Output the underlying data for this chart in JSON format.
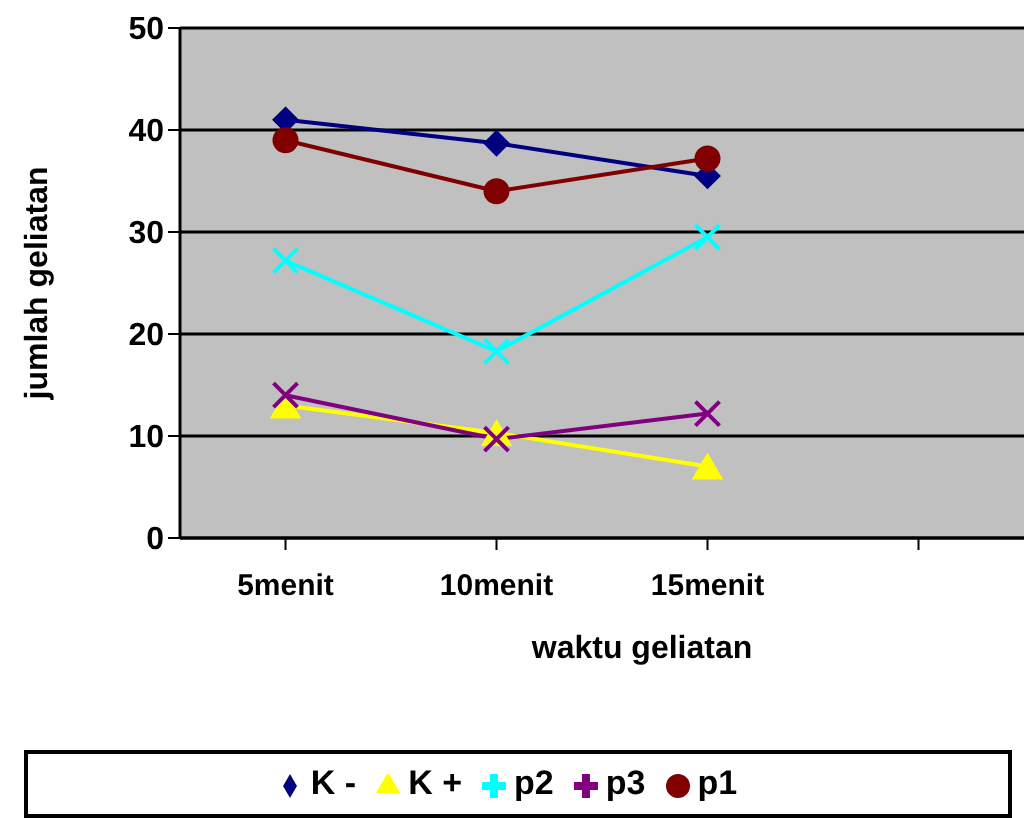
{
  "chart_data": {
    "type": "line",
    "xlabel": "waktu geliatan",
    "ylabel": "jumlah geliatan",
    "categories": [
      "5menit",
      "10menit",
      "15menit",
      null
    ],
    "series": [
      {
        "name": "K -",
        "color": "#000080",
        "marker": "diamond",
        "values": [
          41,
          38.7,
          35.5,
          null
        ]
      },
      {
        "name": "K +",
        "color": "#ffff00",
        "marker": "triangle",
        "values": [
          13,
          10.3,
          7,
          null
        ]
      },
      {
        "name": "p2",
        "color": "#00ffff",
        "marker": "cross",
        "values": [
          27.2,
          18.3,
          29.5,
          null
        ]
      },
      {
        "name": "p3",
        "color": "#800080",
        "marker": "cross",
        "values": [
          14,
          9.7,
          12.2,
          null
        ]
      },
      {
        "name": "p1",
        "color": "#800000",
        "marker": "circle",
        "values": [
          39,
          34,
          37.2,
          null
        ]
      }
    ],
    "ylim": [
      0,
      50
    ],
    "yticks": [
      0,
      10,
      20,
      30,
      40,
      50
    ],
    "grid": "y",
    "legend": "bottom",
    "line_style": "solid"
  }
}
